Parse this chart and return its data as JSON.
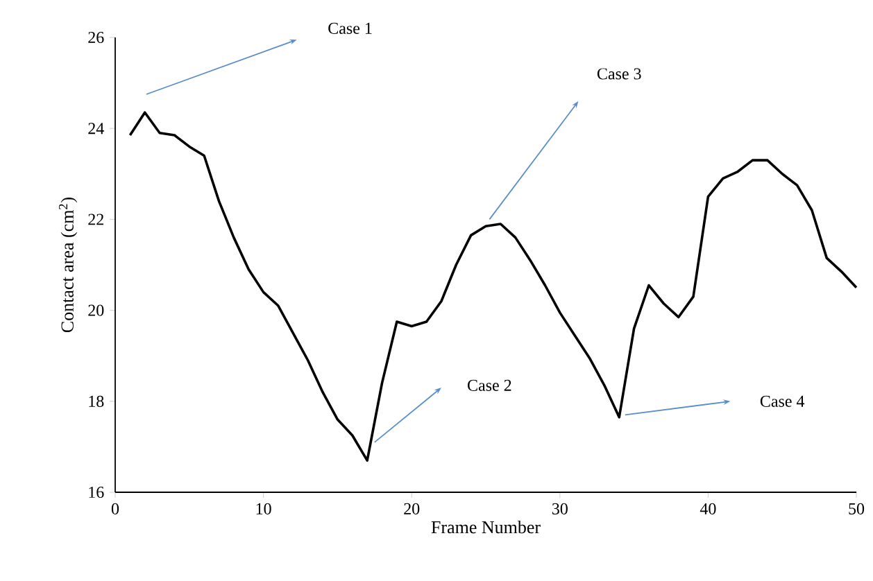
{
  "chart_data": {
    "type": "line",
    "xlabel": "Frame Number",
    "ylabel": "Contact area (cm$^{2}$)",
    "x": [
      1,
      2,
      3,
      4,
      5,
      6,
      7,
      8,
      9,
      10,
      11,
      12,
      13,
      14,
      15,
      16,
      17,
      18,
      19,
      20,
      21,
      22,
      23,
      24,
      25,
      26,
      27,
      28,
      29,
      30,
      31,
      32,
      33,
      34,
      35,
      36,
      37,
      38,
      39,
      40,
      41,
      42,
      43,
      44,
      45,
      46,
      47,
      48,
      49,
      50
    ],
    "series": [
      {
        "color": "#000000",
        "values": [
          23.85,
          24.35,
          23.9,
          23.85,
          23.6,
          23.4,
          22.4,
          21.6,
          20.9,
          20.4,
          20.1,
          19.5,
          18.9,
          18.2,
          17.6,
          17.25,
          16.7,
          18.4,
          19.75,
          19.65,
          19.75,
          20.2,
          21.0,
          21.65,
          21.85,
          21.9,
          21.6,
          21.1,
          20.55,
          19.95,
          19.45,
          18.95,
          18.35,
          17.65,
          19.6,
          20.55,
          20.15,
          19.85,
          20.3,
          22.5,
          22.9,
          23.05,
          23.3,
          23.3,
          23.0,
          22.75,
          22.2,
          21.15,
          20.85,
          20.5
        ]
      }
    ],
    "xlim": [
      0,
      50
    ],
    "ylim": [
      16,
      26
    ],
    "xticks": [
      0,
      10,
      20,
      30,
      40,
      50
    ],
    "yticks": [
      16,
      18,
      20,
      22,
      24,
      26
    ],
    "grid": false,
    "marker": "none",
    "line_style": "solid",
    "annotations": [
      "Case 1",
      "Case 2",
      "Case 3",
      "Case 4"
    ]
  }
}
